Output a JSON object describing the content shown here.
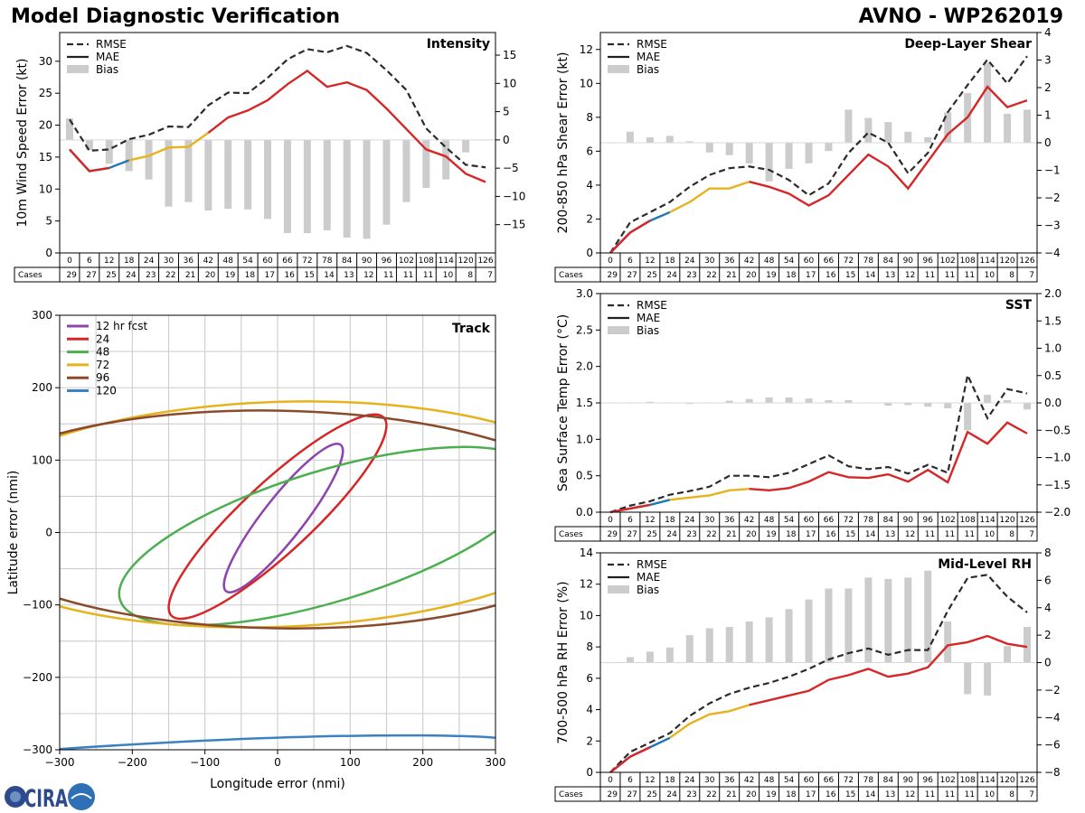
{
  "header": {
    "title": "Model Diagnostic Verification",
    "model_storm": "AVNO - WP262019"
  },
  "logo_text": "CIRA",
  "colors": {
    "rmse": "#2b2b2b",
    "bias": "#cccccc",
    "grid": "#d0d0d0",
    "segments": [
      "#1f77b4",
      "#e6b21d",
      "#d62728"
    ],
    "track": [
      "#8e44ad",
      "#d62728",
      "#4caf50",
      "#e6b21d",
      "#8b4a2b",
      "#3b82c4"
    ]
  },
  "hours": [
    0,
    6,
    12,
    18,
    24,
    30,
    36,
    42,
    48,
    54,
    60,
    66,
    72,
    78,
    84,
    90,
    96,
    102,
    108,
    114,
    120,
    126
  ],
  "cases_label": "Cases",
  "legend": {
    "rmse": "RMSE",
    "mae": "MAE",
    "bias": "Bias"
  },
  "chart_data": [
    {
      "id": "intensity",
      "type": "line",
      "title": "Intensity",
      "ylabel": "10m Wind Speed Error (kt)",
      "ylim": [
        0,
        34.5
      ],
      "y2lim": [
        -20,
        19
      ],
      "yticks": [
        0,
        5,
        10,
        15,
        20,
        25,
        30
      ],
      "y2ticks": [
        -15,
        -10,
        -5,
        0,
        5,
        10,
        15
      ],
      "x": [
        0,
        6,
        12,
        18,
        24,
        30,
        36,
        42,
        48,
        54,
        60,
        66,
        72,
        78,
        84,
        90,
        96,
        102,
        108,
        114,
        120,
        126
      ],
      "rmse": [
        20.9,
        16.0,
        16.2,
        17.8,
        18.5,
        19.8,
        19.7,
        23.1,
        25.1,
        25.0,
        27.4,
        30.3,
        31.9,
        31.4,
        32.4,
        31.3,
        28.6,
        25.5,
        19.5,
        16.5,
        13.8,
        13.4
      ],
      "mae": [
        16.2,
        12.8,
        13.3,
        14.5,
        15.2,
        16.5,
        16.6,
        18.8,
        21.2,
        22.3,
        23.9,
        26.4,
        28.5,
        26.0,
        26.7,
        25.5,
        22.6,
        19.4,
        16.2,
        15.1,
        12.4,
        11.1
      ],
      "bias": [
        3.8,
        -1.8,
        -4.2,
        -5.5,
        -7.0,
        -11.8,
        -11.0,
        -12.5,
        -12.2,
        -12.3,
        -14.0,
        -16.5,
        -16.5,
        -16.0,
        -17.3,
        -17.5,
        -15.0,
        -11.0,
        -8.5,
        -7.0,
        -2.2,
        0
      ],
      "cases": [
        29,
        27,
        25,
        24,
        23,
        22,
        21,
        20,
        19,
        18,
        17,
        16,
        15,
        14,
        13,
        12,
        11,
        11,
        11,
        10,
        8,
        7
      ]
    },
    {
      "id": "shear",
      "type": "line",
      "title": "Deep-Layer Shear",
      "ylabel": "200-850 hPa Shear Error (kt)",
      "ylim": [
        0,
        13
      ],
      "y2lim": [
        -4,
        4
      ],
      "yticks": [
        0,
        2,
        4,
        6,
        8,
        10,
        12
      ],
      "y2ticks": [
        -4,
        -3,
        -2,
        -1,
        0,
        1,
        2,
        3,
        4
      ],
      "x": [
        0,
        6,
        12,
        18,
        24,
        30,
        36,
        42,
        48,
        54,
        60,
        66,
        72,
        78,
        84,
        90,
        96,
        102,
        108,
        114,
        120,
        126
      ],
      "rmse": [
        0,
        1.8,
        2.4,
        3.0,
        3.9,
        4.6,
        5.0,
        5.1,
        4.9,
        4.3,
        3.4,
        4.1,
        5.9,
        7.1,
        6.5,
        4.7,
        5.9,
        8.3,
        9.9,
        11.4,
        10.0,
        11.6
      ],
      "mae": [
        0,
        1.2,
        1.9,
        2.4,
        3.0,
        3.8,
        3.8,
        4.2,
        3.9,
        3.5,
        2.8,
        3.4,
        4.6,
        5.8,
        5.1,
        3.8,
        5.4,
        7.0,
        8.0,
        9.8,
        8.6,
        9.0
      ],
      "bias": [
        0,
        0.4,
        0.2,
        0.25,
        0.05,
        -0.35,
        -0.45,
        -0.75,
        -1.4,
        -0.95,
        -0.75,
        -0.3,
        1.2,
        0.9,
        0.75,
        0.4,
        0.2,
        1.1,
        1.8,
        2.9,
        1.05,
        1.2
      ],
      "cases": [
        29,
        27,
        25,
        24,
        23,
        22,
        21,
        20,
        19,
        18,
        17,
        16,
        15,
        14,
        13,
        12,
        11,
        11,
        11,
        10,
        8,
        7
      ]
    },
    {
      "id": "sst",
      "type": "line",
      "title": "SST",
      "ylabel": "Sea Surface Temp Error (°C)",
      "ylim": [
        0,
        3.0
      ],
      "y2lim": [
        -2.0,
        2.0
      ],
      "yticks": [
        0.0,
        0.5,
        1.0,
        1.5,
        2.0,
        2.5,
        3.0
      ],
      "y2ticks": [
        -2.0,
        -1.5,
        -1.0,
        -0.5,
        0.0,
        0.5,
        1.0,
        1.5,
        2.0
      ],
      "x": [
        0,
        6,
        12,
        18,
        24,
        30,
        36,
        42,
        48,
        54,
        60,
        66,
        72,
        78,
        84,
        90,
        96,
        102,
        108,
        114,
        120,
        126
      ],
      "rmse": [
        0,
        0.09,
        0.15,
        0.24,
        0.29,
        0.35,
        0.5,
        0.5,
        0.48,
        0.54,
        0.66,
        0.78,
        0.63,
        0.59,
        0.62,
        0.53,
        0.65,
        0.54,
        1.88,
        1.29,
        1.69,
        1.63
      ],
      "mae": [
        0,
        0.05,
        0.1,
        0.17,
        0.2,
        0.23,
        0.3,
        0.32,
        0.3,
        0.33,
        0.42,
        0.55,
        0.48,
        0.47,
        0.52,
        0.42,
        0.58,
        0.41,
        1.1,
        0.94,
        1.23,
        1.08
      ],
      "bias": [
        0,
        0.0,
        0.02,
        0.0,
        -0.02,
        0.0,
        0.04,
        0.07,
        0.1,
        0.1,
        0.08,
        0.05,
        0.05,
        0.0,
        -0.05,
        -0.04,
        -0.07,
        -0.1,
        -0.5,
        0.15,
        0.05,
        -0.12
      ],
      "cases": [
        29,
        27,
        25,
        24,
        23,
        22,
        21,
        20,
        19,
        18,
        17,
        16,
        15,
        14,
        13,
        12,
        11,
        11,
        11,
        10,
        8,
        7
      ]
    },
    {
      "id": "rh",
      "type": "line",
      "title": "Mid-Level RH",
      "ylabel": "700-500 hPa RH Error (%)",
      "ylim": [
        0,
        14
      ],
      "y2lim": [
        -8,
        8
      ],
      "yticks": [
        0,
        2,
        4,
        6,
        8,
        10,
        12,
        14
      ],
      "y2ticks": [
        -8,
        -6,
        -4,
        -2,
        0,
        2,
        4,
        6,
        8
      ],
      "x": [
        0,
        6,
        12,
        18,
        24,
        30,
        36,
        42,
        48,
        54,
        60,
        66,
        72,
        78,
        84,
        90,
        96,
        102,
        108,
        114,
        120,
        126
      ],
      "rmse": [
        0,
        1.3,
        1.9,
        2.5,
        3.6,
        4.4,
        5.0,
        5.4,
        5.7,
        6.1,
        6.6,
        7.2,
        7.6,
        7.9,
        7.5,
        7.8,
        7.8,
        10.3,
        12.4,
        12.6,
        11.2,
        10.2
      ],
      "mae": [
        0,
        1.0,
        1.6,
        2.2,
        3.1,
        3.7,
        3.9,
        4.3,
        4.6,
        4.9,
        5.2,
        5.9,
        6.2,
        6.6,
        6.1,
        6.3,
        6.7,
        8.1,
        8.3,
        8.7,
        8.2,
        8.0
      ],
      "bias": [
        0,
        0.4,
        0.8,
        1.1,
        2.0,
        2.5,
        2.6,
        3.0,
        3.3,
        3.9,
        4.6,
        5.4,
        5.4,
        6.2,
        6.1,
        6.2,
        6.7,
        3.0,
        -2.3,
        -2.4,
        1.2,
        2.6
      ],
      "cases": [
        29,
        27,
        25,
        24,
        23,
        22,
        21,
        20,
        19,
        18,
        17,
        16,
        15,
        14,
        13,
        12,
        11,
        11,
        11,
        10,
        8,
        7
      ]
    },
    {
      "id": "track",
      "type": "line",
      "title": "Track",
      "xlabel": "Longitude error (nmi)",
      "ylabel": "Latitude error (nmi)",
      "xlim": [
        -300,
        300
      ],
      "ylim": [
        -300,
        300
      ],
      "xticks": [
        -300,
        -200,
        -100,
        0,
        100,
        200,
        300
      ],
      "yticks": [
        -300,
        -200,
        -100,
        0,
        100,
        200,
        300
      ],
      "series": [
        {
          "name": "12 hr fcst",
          "center": [
            8,
            20
          ],
          "semi_axes": [
            128,
            28
          ],
          "angle_deg": 52
        },
        {
          "name": "24",
          "center": [
            0,
            22
          ],
          "semi_axes": [
            200,
            48
          ],
          "angle_deg": 43
        },
        {
          "name": "48",
          "center": [
            70,
            -5
          ],
          "semi_axes": [
            300,
            90
          ],
          "angle_deg": 17
        },
        {
          "name": "72",
          "center": [
            0,
            25
          ],
          "semi_axes": [
            460,
            155
          ],
          "angle_deg": 2
        },
        {
          "name": "96",
          "center": [
            0,
            18
          ],
          "semi_axes": [
            460,
            150
          ],
          "angle_deg": -1
        },
        {
          "name": "120",
          "center": [
            -150,
            -320
          ],
          "semi_axes": [
            500,
            30
          ],
          "angle_deg": 3
        }
      ]
    }
  ]
}
